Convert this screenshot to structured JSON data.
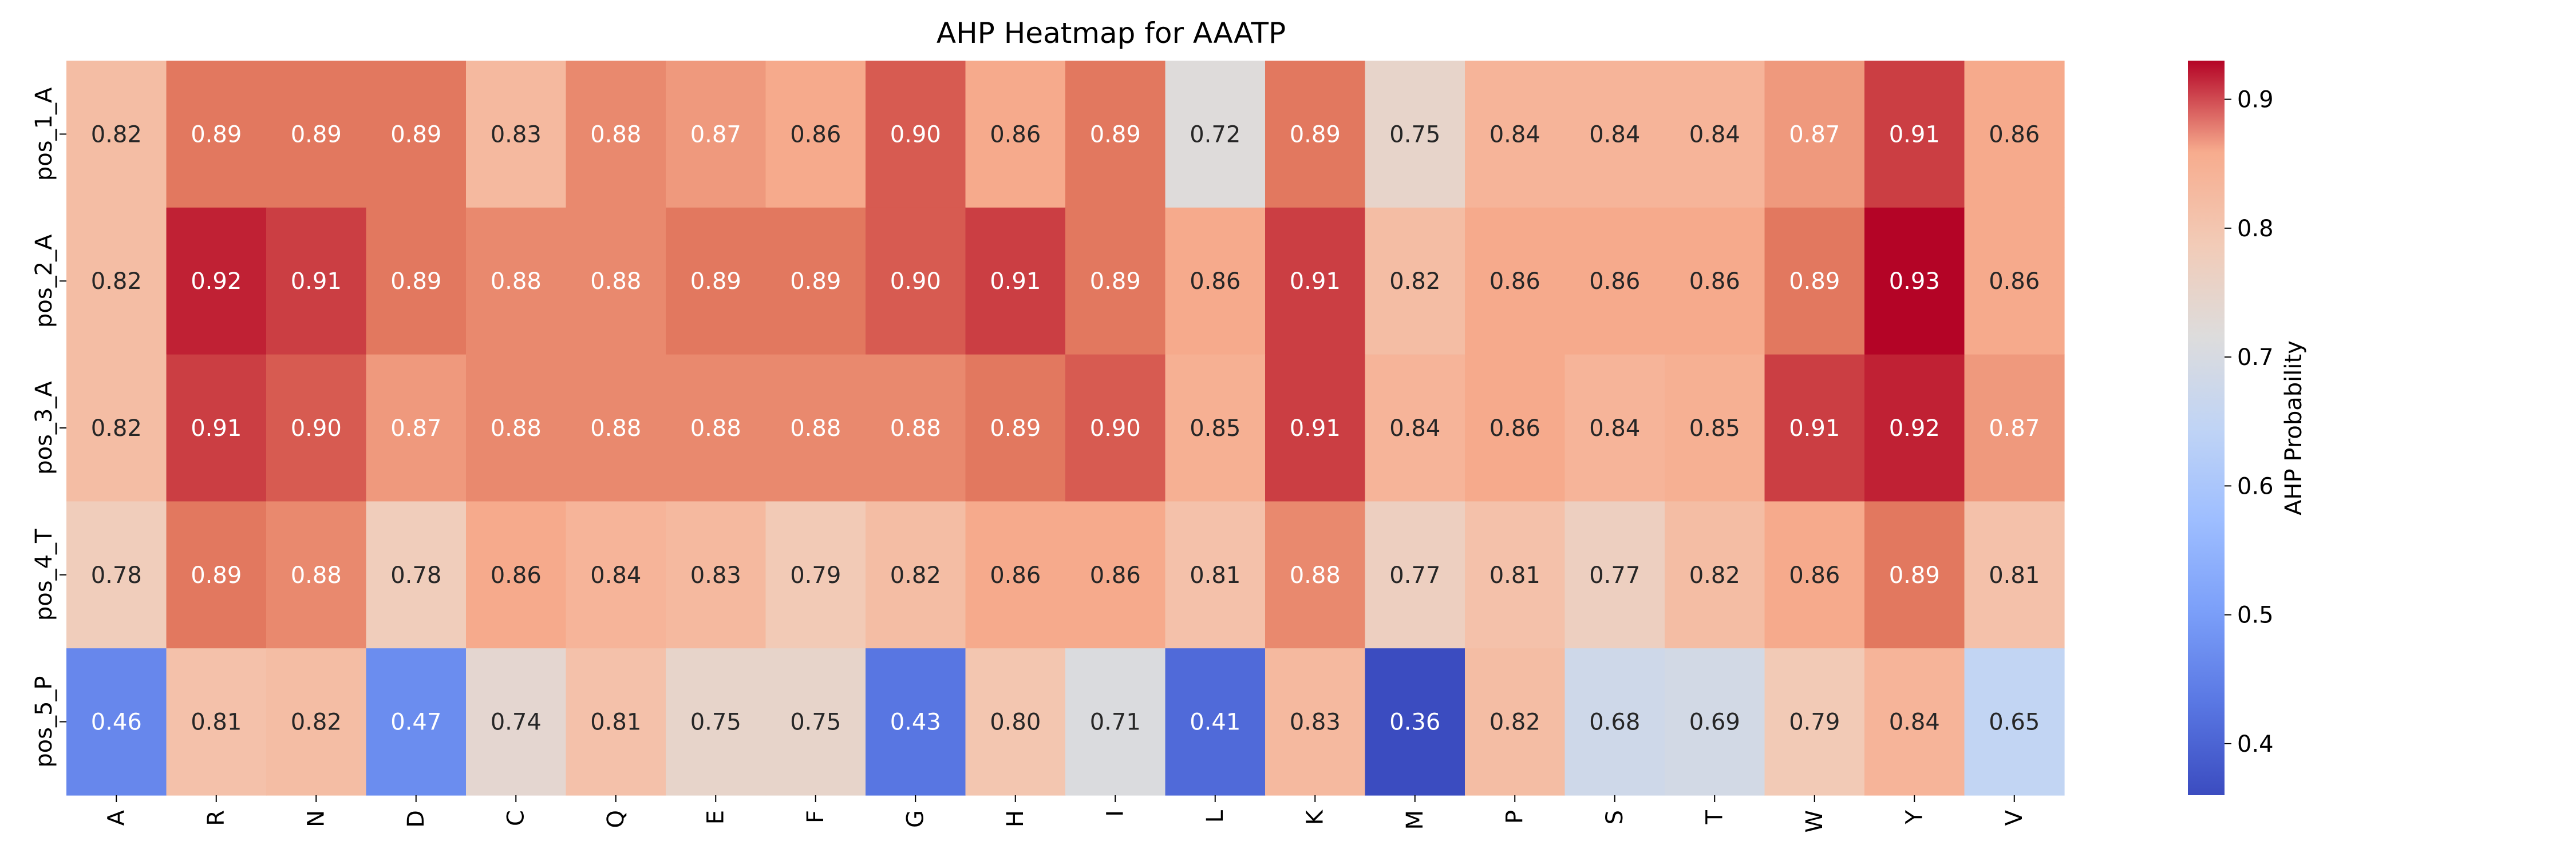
{
  "chart_data": {
    "type": "heatmap",
    "title": "AHP Heatmap for AAATP",
    "xlabel": "",
    "ylabel": "",
    "x_categories": [
      "A",
      "R",
      "N",
      "D",
      "C",
      "Q",
      "E",
      "F",
      "G",
      "H",
      "I",
      "L",
      "K",
      "M",
      "P",
      "S",
      "T",
      "W",
      "Y",
      "V"
    ],
    "y_categories": [
      "pos_1_A",
      "pos_2_A",
      "pos_3_A",
      "pos_4_T",
      "pos_5_P"
    ],
    "values": [
      [
        0.82,
        0.89,
        0.89,
        0.89,
        0.83,
        0.88,
        0.87,
        0.86,
        0.9,
        0.86,
        0.89,
        0.72,
        0.89,
        0.75,
        0.84,
        0.84,
        0.84,
        0.87,
        0.91,
        0.86
      ],
      [
        0.82,
        0.92,
        0.91,
        0.89,
        0.88,
        0.88,
        0.89,
        0.89,
        0.9,
        0.91,
        0.89,
        0.86,
        0.91,
        0.82,
        0.86,
        0.86,
        0.86,
        0.89,
        0.93,
        0.86
      ],
      [
        0.82,
        0.91,
        0.9,
        0.87,
        0.88,
        0.88,
        0.88,
        0.88,
        0.88,
        0.89,
        0.9,
        0.85,
        0.91,
        0.84,
        0.86,
        0.84,
        0.85,
        0.91,
        0.92,
        0.87
      ],
      [
        0.78,
        0.89,
        0.88,
        0.78,
        0.86,
        0.84,
        0.83,
        0.79,
        0.82,
        0.86,
        0.86,
        0.81,
        0.88,
        0.77,
        0.81,
        0.77,
        0.82,
        0.86,
        0.89,
        0.81
      ],
      [
        0.46,
        0.81,
        0.82,
        0.47,
        0.74,
        0.81,
        0.75,
        0.75,
        0.43,
        0.8,
        0.71,
        0.41,
        0.83,
        0.36,
        0.82,
        0.68,
        0.69,
        0.79,
        0.84,
        0.65
      ]
    ],
    "value_format": "2 decimals",
    "colormap": "coolwarm",
    "vmin": 0.36,
    "vmax": 0.93,
    "colorbar": {
      "label": "AHP Probability",
      "ticks": [
        0.4,
        0.5,
        0.6,
        0.7,
        0.8,
        0.9
      ],
      "tick_labels": [
        "0.4",
        "0.5",
        "0.6",
        "0.7",
        "0.8",
        "0.9"
      ]
    }
  }
}
